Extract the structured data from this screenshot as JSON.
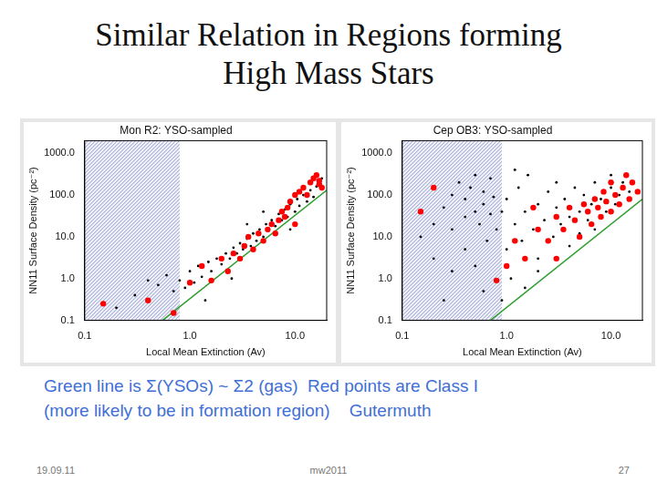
{
  "title": [
    "Similar Relation in Regions forming",
    "High Mass Stars"
  ],
  "caption": [
    "Green line is Σ(YSOs) ~ Σ2 (gas)  Red points are Class I",
    "(more likely to be in formation region)    Gutermuth"
  ],
  "footer": {
    "date": "19.09.11",
    "center": "mw2011",
    "page": "27"
  },
  "chart_data": [
    {
      "type": "scatter",
      "title": "Mon R2: YSO-sampled",
      "x_label": "Local Mean Extinction (Av)",
      "y_label": "NN11 Surface Density (pc⁻²)",
      "log": true,
      "grid": false,
      "legend": false,
      "xlim": [
        0.1,
        20
      ],
      "xticks": [
        0.1,
        {
          "value": 1,
          "label": "1.0"
        },
        {
          "value": 10,
          "label": "10.0"
        }
      ],
      "ylim": [
        0.1,
        2000
      ],
      "yticks": [
        0.1,
        {
          "value": 1,
          "label": "1.0"
        },
        {
          "value": 10,
          "label": "10.0"
        },
        {
          "value": 100,
          "label": "100.0"
        },
        {
          "value": 1000,
          "label": "1000.0"
        }
      ],
      "shaded_region": [
        0.1,
        0.8
      ],
      "series": [
        {
          "type": "scatter",
          "color": "#000000",
          "marker": "dot",
          "values": [
            [
              0.3,
              0.4
            ],
            [
              0.4,
              0.9
            ],
            [
              0.5,
              0.7
            ],
            [
              0.6,
              1.2
            ],
            [
              0.7,
              0.5
            ],
            [
              0.8,
              0.9
            ],
            [
              0.9,
              0.6
            ],
            [
              1.0,
              1.5
            ],
            [
              1.1,
              0.8
            ],
            [
              1.2,
              2.0
            ],
            [
              1.3,
              1.1
            ],
            [
              1.5,
              2.5
            ],
            [
              1.6,
              1.5
            ],
            [
              1.8,
              3.0
            ],
            [
              2.0,
              2.2
            ],
            [
              2.2,
              4.0
            ],
            [
              2.4,
              3.0
            ],
            [
              2.6,
              5.5
            ],
            [
              2.8,
              4.0
            ],
            [
              3.0,
              7.0
            ],
            [
              3.2,
              5.0
            ],
            [
              3.5,
              9.0
            ],
            [
              3.8,
              6.0
            ],
            [
              4.0,
              12
            ],
            [
              4.3,
              8
            ],
            [
              4.6,
              15
            ],
            [
              5.0,
              10
            ],
            [
              5.3,
              20
            ],
            [
              5.6,
              14
            ],
            [
              6.0,
              25
            ],
            [
              6.5,
              18
            ],
            [
              7.0,
              35
            ],
            [
              7.5,
              25
            ],
            [
              8.0,
              45
            ],
            [
              8.5,
              30
            ],
            [
              9.0,
              60
            ],
            [
              10,
              40
            ],
            [
              10.5,
              80
            ],
            [
              11,
              55
            ],
            [
              12,
              100
            ],
            [
              13,
              70
            ],
            [
              14,
              130
            ],
            [
              15,
              90
            ],
            [
              16,
              160
            ],
            [
              17,
              200
            ],
            [
              18,
              250
            ],
            [
              1.4,
              0.3
            ],
            [
              2.5,
              1.0
            ],
            [
              0.2,
              0.2
            ],
            [
              3.5,
              20
            ],
            [
              5,
              40
            ],
            [
              9,
              15
            ]
          ]
        },
        {
          "type": "scatter",
          "color": "#ff0000",
          "marker": "circle",
          "values": [
            [
              0.15,
              0.25
            ],
            [
              0.7,
              0.15
            ],
            [
              1.0,
              0.8
            ],
            [
              1.3,
              2
            ],
            [
              1.6,
              0.9
            ],
            [
              2,
              3
            ],
            [
              2.3,
              1.5
            ],
            [
              2.6,
              4
            ],
            [
              3,
              3
            ],
            [
              3.3,
              6
            ],
            [
              3.6,
              10
            ],
            [
              4,
              5
            ],
            [
              4.5,
              12
            ],
            [
              5,
              8
            ],
            [
              5.5,
              15
            ],
            [
              6,
              20
            ],
            [
              6.5,
              12
            ],
            [
              7,
              25
            ],
            [
              7.5,
              40
            ],
            [
              8,
              30
            ],
            [
              8.5,
              50
            ],
            [
              9,
              70
            ],
            [
              10,
              100
            ],
            [
              10,
              20
            ],
            [
              11,
              120
            ],
            [
              12,
              150
            ],
            [
              13,
              100
            ],
            [
              14,
              200
            ],
            [
              15,
              250
            ],
            [
              16,
              300
            ],
            [
              17,
              180
            ],
            [
              17,
              220
            ],
            [
              18,
              150
            ],
            [
              0.4,
              0.3
            ]
          ]
        },
        {
          "type": "line",
          "color": "#2e9e2e",
          "line_style": "solid",
          "values": [
            [
              0.55,
              0.1
            ],
            [
              20,
              130
            ]
          ]
        }
      ]
    },
    {
      "type": "scatter",
      "title": "Cep OB3: YSO-sampled",
      "x_label": "Local Mean Extinction (Av)",
      "y_label": "NN11 Surface Density (pc⁻²)",
      "log": true,
      "grid": false,
      "legend": false,
      "xlim": [
        0.1,
        20
      ],
      "xticks": [
        0.1,
        {
          "value": 1,
          "label": "1.0"
        },
        {
          "value": 10,
          "label": "10.0"
        }
      ],
      "ylim": [
        0.1,
        2000
      ],
      "yticks": [
        0.1,
        {
          "value": 1,
          "label": "1.0"
        },
        {
          "value": 10,
          "label": "10.0"
        },
        {
          "value": 100,
          "label": "100.0"
        },
        {
          "value": 1000,
          "label": "1000.0"
        }
      ],
      "shaded_region": [
        0.1,
        0.9
      ],
      "series": [
        {
          "type": "scatter",
          "color": "#000000",
          "marker": "dot",
          "values": [
            [
              0.2,
              20
            ],
            [
              0.25,
              50
            ],
            [
              0.3,
              100
            ],
            [
              0.3,
              15
            ],
            [
              0.35,
              200
            ],
            [
              0.4,
              30
            ],
            [
              0.4,
              80
            ],
            [
              0.45,
              150
            ],
            [
              0.5,
              40
            ],
            [
              0.5,
              300
            ],
            [
              0.55,
              20
            ],
            [
              0.6,
              60
            ],
            [
              0.6,
              120
            ],
            [
              0.65,
              8
            ],
            [
              0.7,
              250
            ],
            [
              0.7,
              35
            ],
            [
              0.75,
              90
            ],
            [
              0.8,
              15
            ],
            [
              0.2,
              3
            ],
            [
              0.25,
              0.3
            ],
            [
              0.3,
              1.5
            ],
            [
              0.4,
              5
            ],
            [
              0.5,
              2
            ],
            [
              0.6,
              0.5
            ],
            [
              0.15,
              10
            ],
            [
              0.9,
              40
            ],
            [
              1.0,
              80
            ],
            [
              1.0,
              5
            ],
            [
              1.2,
              20
            ],
            [
              1.3,
              150
            ],
            [
              1.4,
              8
            ],
            [
              1.5,
              40
            ],
            [
              1.6,
              300
            ],
            [
              1.8,
              15
            ],
            [
              2.0,
              60
            ],
            [
              2.0,
              3
            ],
            [
              2.3,
              25
            ],
            [
              2.5,
              120
            ],
            [
              2.8,
              10
            ],
            [
              3.0,
              50
            ],
            [
              3.0,
              200
            ],
            [
              3.3,
              20
            ],
            [
              3.6,
              80
            ],
            [
              4.0,
              30
            ],
            [
              4.0,
              6
            ],
            [
              4.5,
              150
            ],
            [
              5.0,
              40
            ],
            [
              5.0,
              12
            ],
            [
              5.5,
              100
            ],
            [
              6.0,
              25
            ],
            [
              6.5,
              60
            ],
            [
              7.0,
              200
            ],
            [
              7.0,
              15
            ],
            [
              8.0,
              80
            ],
            [
              9.0,
              40
            ],
            [
              10,
              150
            ],
            [
              10,
              300
            ],
            [
              11,
              60
            ],
            [
              12,
              100
            ],
            [
              13,
              200
            ],
            [
              15,
              120
            ],
            [
              1.1,
              1.0
            ],
            [
              1.5,
              0.6
            ],
            [
              2,
              1.5
            ],
            [
              1.2,
              400
            ],
            [
              0.9,
              0.3
            ]
          ]
        },
        {
          "type": "scatter",
          "color": "#ff0000",
          "marker": "circle",
          "values": [
            [
              0.15,
              40
            ],
            [
              0.2,
              150
            ],
            [
              0.8,
              0.9
            ],
            [
              1.0,
              2
            ],
            [
              1.2,
              8
            ],
            [
              1.5,
              3
            ],
            [
              2,
              15
            ],
            [
              2.5,
              8
            ],
            [
              3,
              30
            ],
            [
              3.5,
              15
            ],
            [
              4,
              50
            ],
            [
              4.5,
              25
            ],
            [
              5,
              10
            ],
            [
              5.5,
              60
            ],
            [
              6,
              40
            ],
            [
              6.5,
              20
            ],
            [
              7,
              80
            ],
            [
              7.5,
              50
            ],
            [
              8,
              30
            ],
            [
              8.5,
              120
            ],
            [
              9,
              70
            ],
            [
              10,
              40
            ],
            [
              10,
              200
            ],
            [
              11,
              100
            ],
            [
              12,
              60
            ],
            [
              13,
              150
            ],
            [
              14,
              300
            ],
            [
              15,
              80
            ],
            [
              16,
              200
            ],
            [
              18,
              120
            ],
            [
              3,
              3
            ],
            [
              1.8,
              50
            ]
          ]
        },
        {
          "type": "line",
          "color": "#2e9e2e",
          "line_style": "solid",
          "values": [
            [
              0.7,
              0.1
            ],
            [
              20,
              80
            ]
          ]
        }
      ]
    }
  ]
}
